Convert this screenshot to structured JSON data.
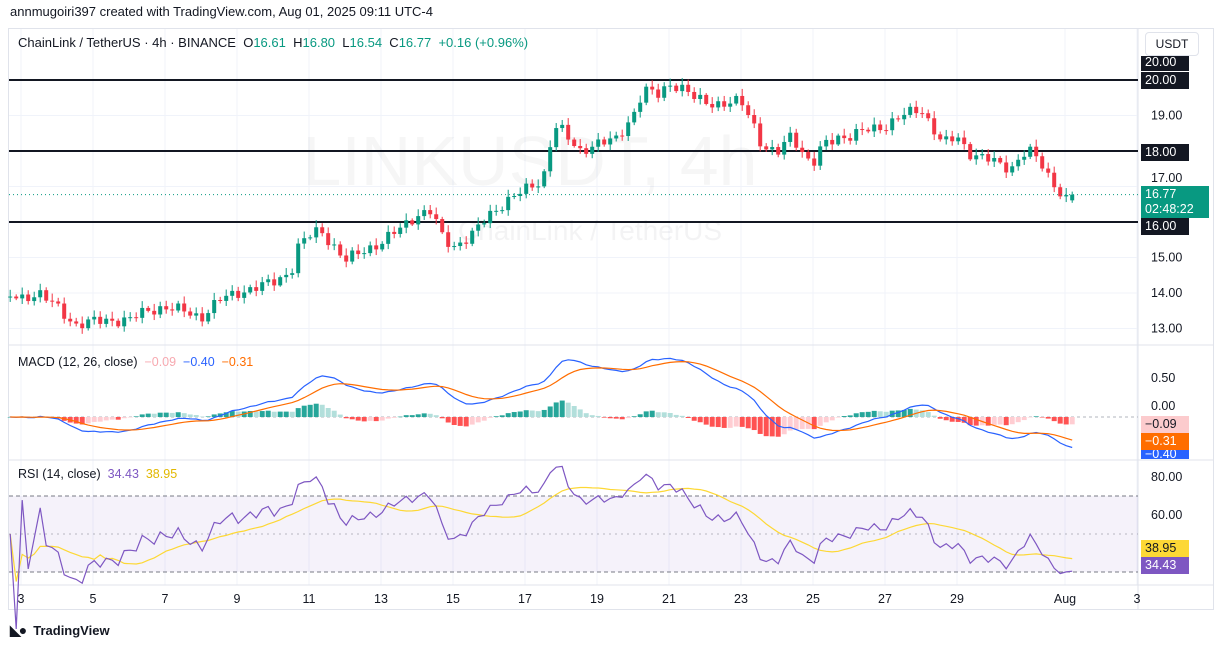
{
  "attribution": "annmugoiri397 created with TradingView.com, Aug 01, 2025 09:11 UTC-4",
  "header": {
    "symbol": "ChainLink / TetherUS · 4h · BINANCE",
    "o_label": "O",
    "o": "16.61",
    "h_label": "H",
    "h": "16.80",
    "l_label": "L",
    "l": "16.54",
    "c_label": "C",
    "c": "16.77",
    "change": "+0.16 (+0.96%)"
  },
  "currency_button": "USDT",
  "watermark": {
    "main": "LINKUSDT, 4h",
    "sub": "ChainLink / TetherUS"
  },
  "colors": {
    "up": "#089981",
    "down": "#f23645",
    "macd": "#2962ff",
    "signal": "#ff6d00",
    "rsi": "#7e57c2",
    "rsi_ma": "#fdd835"
  },
  "price_tags": {
    "top_label": "20.00",
    "level_20": "20.00",
    "level_18": "18.00",
    "level_16": "16.00",
    "last": "16.77",
    "countdown": "02:48:22"
  },
  "macd": {
    "title": "MACD (12, 26, close)",
    "hist": "−0.09",
    "macd": "−0.40",
    "signal": "−0.31",
    "zero_label": "0.00"
  },
  "rsi": {
    "title": "RSI (14, close)",
    "rsi": "34.43",
    "ma": "38.95"
  },
  "brand": "TradingView",
  "chart_data": {
    "type": "candlestick",
    "title": "ChainLink / TetherUS · 4h · BINANCE",
    "y_ticks": [
      "20.00",
      "19.00",
      "18.00",
      "17.00",
      "16.00",
      "15.00",
      "14.00",
      "13.00"
    ],
    "ylim": [
      12.7,
      20.4
    ],
    "horizontal_levels": [
      20,
      18,
      16
    ],
    "x_ticks": [
      "3",
      "5",
      "7",
      "9",
      "11",
      "13",
      "15",
      "17",
      "19",
      "21",
      "23",
      "25",
      "27",
      "29",
      "Aug",
      "3"
    ],
    "x_tick_days": [
      3,
      5,
      7,
      9,
      11,
      13,
      15,
      17,
      19,
      21,
      23,
      25,
      27,
      29,
      32,
      34
    ],
    "macd_ticks": [
      "0.50",
      "0.00"
    ],
    "rsi_ticks": [
      "80.00",
      "60.00"
    ],
    "rsi_bands": [
      70,
      50,
      30
    ],
    "close_path_day_price": [
      [
        2.7,
        13.9
      ],
      [
        3,
        13.85
      ],
      [
        3.5,
        14.0
      ],
      [
        4,
        13.6
      ],
      [
        4.5,
        13.1
      ],
      [
        5,
        13.2
      ],
      [
        6,
        13.25
      ],
      [
        6.5,
        13.5
      ],
      [
        7,
        13.6
      ],
      [
        7.5,
        13.5
      ],
      [
        8,
        13.3
      ],
      [
        8.5,
        13.8
      ],
      [
        9,
        14.0
      ],
      [
        10,
        14.3
      ],
      [
        10.5,
        14.6
      ],
      [
        10.7,
        15.3
      ],
      [
        11,
        15.6
      ],
      [
        11.3,
        15.8
      ],
      [
        11.7,
        15.3
      ],
      [
        12,
        14.9
      ],
      [
        12.5,
        15.2
      ],
      [
        13,
        15.4
      ],
      [
        13.5,
        15.8
      ],
      [
        14,
        16.2
      ],
      [
        14.4,
        16.3
      ],
      [
        14.7,
        15.6
      ],
      [
        15,
        15.3
      ],
      [
        15.5,
        15.6
      ],
      [
        16,
        16.2
      ],
      [
        16.5,
        16.6
      ],
      [
        17,
        16.9
      ],
      [
        17.5,
        17.2
      ],
      [
        17.8,
        18.7
      ],
      [
        18,
        18.6
      ],
      [
        18.5,
        18.0
      ],
      [
        19,
        18.2
      ],
      [
        19.5,
        18.3
      ],
      [
        20,
        19.0
      ],
      [
        20.3,
        19.7
      ],
      [
        20.7,
        19.6
      ],
      [
        21,
        19.9
      ],
      [
        21.3,
        19.8
      ],
      [
        21.7,
        19.5
      ],
      [
        22,
        19.4
      ],
      [
        22.5,
        19.3
      ],
      [
        23,
        19.4
      ],
      [
        23.3,
        18.9
      ],
      [
        23.6,
        18.1
      ],
      [
        24,
        17.9
      ],
      [
        24.4,
        18.5
      ],
      [
        24.8,
        17.8
      ],
      [
        25,
        17.6
      ],
      [
        25.3,
        18.2
      ],
      [
        25.7,
        18.4
      ],
      [
        26,
        18.4
      ],
      [
        26.5,
        18.6
      ],
      [
        27,
        18.7
      ],
      [
        27.5,
        19.0
      ],
      [
        28,
        19.2
      ],
      [
        28.3,
        18.7
      ],
      [
        28.6,
        18.2
      ],
      [
        29,
        18.4
      ],
      [
        29.4,
        17.9
      ],
      [
        29.8,
        17.8
      ],
      [
        30,
        17.7
      ],
      [
        30.5,
        17.5
      ],
      [
        30.8,
        17.9
      ],
      [
        31,
        18.0
      ],
      [
        31.3,
        17.7
      ],
      [
        31.6,
        17.2
      ],
      [
        31.9,
        16.8
      ],
      [
        32.05,
        16.61
      ],
      [
        32.2,
        16.77
      ]
    ]
  }
}
